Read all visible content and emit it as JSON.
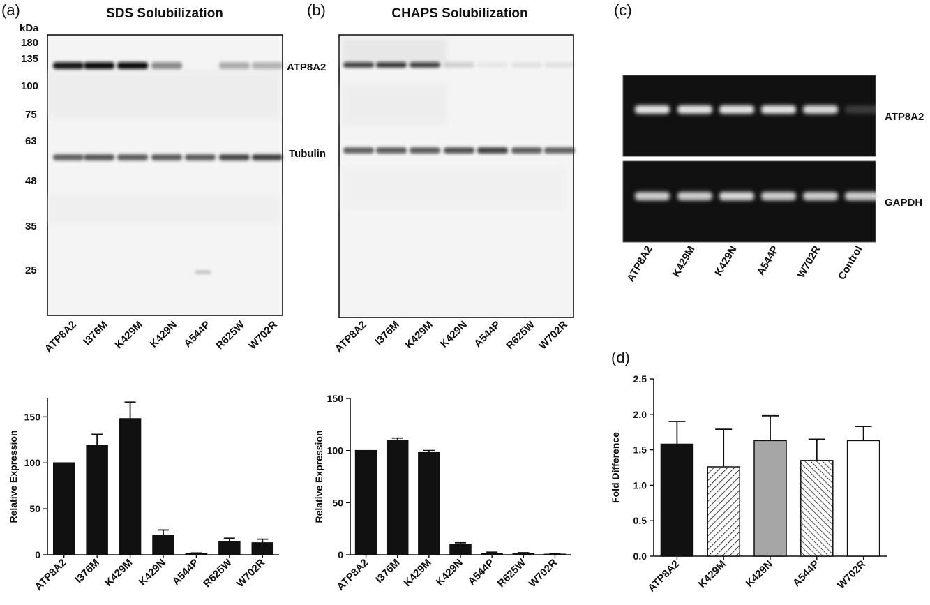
{
  "panels": {
    "a": {
      "panel_label": "(a)",
      "title": "SDS Solubilization",
      "kda_label": "kDa",
      "markers": [
        "180",
        "135",
        "100",
        "75",
        "63",
        "48",
        "35",
        "25"
      ],
      "protein_labels": [
        "ATP8A2",
        "Tubulin"
      ],
      "lanes": [
        "ATP8A2",
        "I376M",
        "K429M",
        "K429N",
        "A544P",
        "R625W",
        "W702R"
      ]
    },
    "b": {
      "panel_label": "(b)",
      "title": "CHAPS Solubilization",
      "lanes": [
        "ATP8A2",
        "I376M",
        "K429M",
        "K429N",
        "A544P",
        "R625W",
        "W702R"
      ]
    },
    "c": {
      "panel_label": "(c)",
      "gel_labels": [
        "ATP8A2",
        "GAPDH"
      ],
      "lanes": [
        "ATP8A2",
        "K429M",
        "K429N",
        "A544P",
        "W702R",
        "Control"
      ]
    },
    "d": {
      "panel_label": "(d)"
    }
  },
  "chart_data": [
    {
      "id": "a-bottom",
      "type": "bar",
      "title": "",
      "xlabel": "",
      "ylabel": "Relative Expression",
      "categories": [
        "ATP8A2",
        "I376M",
        "K429M",
        "K429N",
        "A544P",
        "R625W",
        "W702R"
      ],
      "values": [
        100,
        119,
        148,
        21,
        1,
        14,
        13
      ],
      "errors": [
        0,
        12,
        18,
        6,
        1,
        4,
        4
      ],
      "ylim": [
        0,
        170
      ],
      "yticks": [
        0,
        50,
        100,
        150
      ],
      "bar_colors": [
        "#111111",
        "#111111",
        "#111111",
        "#111111",
        "#111111",
        "#111111",
        "#111111"
      ],
      "grid": false
    },
    {
      "id": "b-bottom",
      "type": "bar",
      "title": "",
      "xlabel": "",
      "ylabel": "Relative Expression",
      "categories": [
        "ATP8A2",
        "I376M",
        "K429M",
        "K429N",
        "A544P",
        "R625W",
        "W702R"
      ],
      "values": [
        100,
        110,
        98,
        10,
        1.5,
        1,
        0.5
      ],
      "errors": [
        0,
        2,
        2,
        1.5,
        1,
        1,
        0.5
      ],
      "ylim": [
        0,
        150
      ],
      "yticks": [
        0,
        50,
        100,
        150
      ],
      "bar_colors": [
        "#111111",
        "#111111",
        "#111111",
        "#111111",
        "#111111",
        "#111111",
        "#111111"
      ],
      "grid": false
    },
    {
      "id": "d",
      "type": "bar",
      "title": "",
      "xlabel": "",
      "ylabel": "Fold Difference",
      "categories": [
        "ATP8A2",
        "K429M",
        "K429N",
        "A544P",
        "W702R"
      ],
      "values": [
        1.58,
        1.26,
        1.63,
        1.35,
        1.63
      ],
      "errors": [
        0.32,
        0.53,
        0.35,
        0.3,
        0.2
      ],
      "ylim": [
        0,
        2.5
      ],
      "yticks": [
        0.0,
        0.5,
        1.0,
        1.5,
        2.0,
        2.5
      ],
      "bar_fills": [
        "solid-black",
        "hatch-forward",
        "solid-gray",
        "hatch-back",
        "white"
      ],
      "bar_colors": [
        "#111111",
        "#ffffff",
        "#a6a6a6",
        "#ffffff",
        "#ffffff"
      ],
      "grid": false
    }
  ]
}
